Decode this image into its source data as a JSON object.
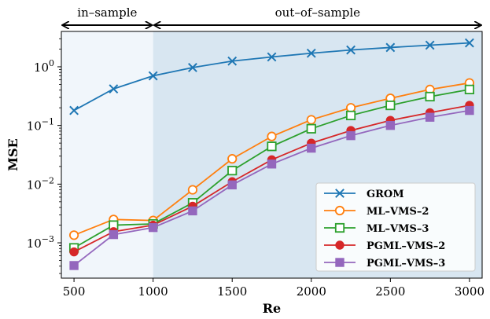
{
  "chart_data": {
    "type": "line",
    "yscale": "log",
    "xlabel": "Re",
    "ylabel": "MSE",
    "xlim": [
      420,
      3080
    ],
    "ylim": [
      0.00025,
      4.0
    ],
    "xticks": [
      500,
      1000,
      1500,
      2000,
      2500,
      3000
    ],
    "yticks": [
      {
        "value": 1,
        "base": "10",
        "exp": "0"
      },
      {
        "value": 0.1,
        "base": "10",
        "exp": "−1"
      },
      {
        "value": 0.01,
        "base": "10",
        "exp": "−2"
      },
      {
        "value": 0.001,
        "base": "10",
        "exp": "−3"
      }
    ],
    "regions": [
      {
        "label": "in–sample",
        "from": 420,
        "to": 1000,
        "color": "#f1f6fb"
      },
      {
        "label": "out–of–sample",
        "from": 1000,
        "to": 3080,
        "color": "#d8e6f1"
      }
    ],
    "legend_position": "lower-right",
    "x": [
      500,
      750,
      1000,
      1250,
      1500,
      1750,
      2000,
      2250,
      2500,
      2750,
      3000
    ],
    "series": [
      {
        "name": "GROM",
        "color": "#1f77b4",
        "marker": "x",
        "values": [
          0.18,
          0.42,
          0.7,
          0.97,
          1.25,
          1.47,
          1.7,
          1.93,
          2.13,
          2.33,
          2.55
        ]
      },
      {
        "name": "ML–VMS–2",
        "color": "#ff7f0e",
        "marker": "circle-open",
        "values": [
          0.00135,
          0.0025,
          0.0024,
          0.008,
          0.027,
          0.065,
          0.125,
          0.2,
          0.29,
          0.41,
          0.53
        ]
      },
      {
        "name": "ML–VMS–3",
        "color": "#2ca02c",
        "marker": "square-open",
        "values": [
          0.00082,
          0.002,
          0.0021,
          0.0048,
          0.017,
          0.044,
          0.088,
          0.148,
          0.22,
          0.31,
          0.41
        ]
      },
      {
        "name": "PGML–VMS–2",
        "color": "#d62728",
        "marker": "circle",
        "values": [
          0.0007,
          0.00155,
          0.002,
          0.0042,
          0.011,
          0.026,
          0.05,
          0.082,
          0.122,
          0.165,
          0.22
        ]
      },
      {
        "name": "PGML–VMS–3",
        "color": "#9467bd",
        "marker": "square",
        "values": [
          0.00041,
          0.00138,
          0.00182,
          0.0035,
          0.0097,
          0.022,
          0.041,
          0.067,
          0.1,
          0.138,
          0.18
        ]
      }
    ]
  }
}
